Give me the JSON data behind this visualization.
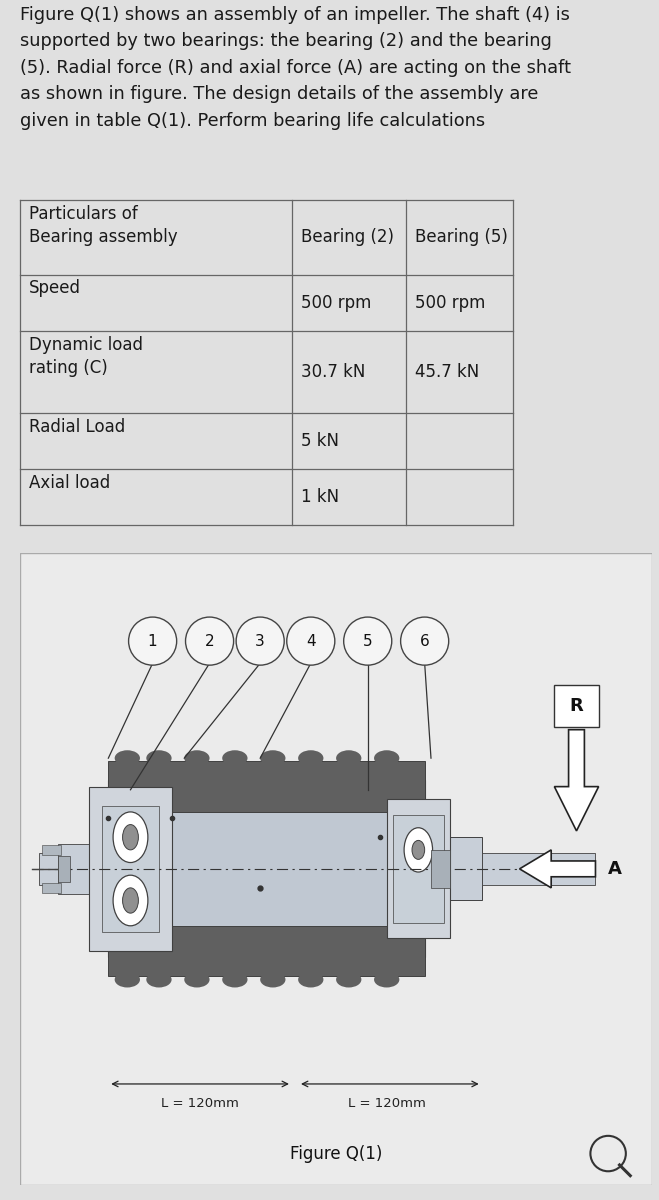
{
  "question_text": "Figure Q(1) shows an assembly of an impeller. The shaft (4) is\nsupported by two bearings: the bearing (2) and the bearing\n(5). Radial force (R) and axial force (A) are acting on the shaft\nas shown in figure. The design details of the assembly are\ngiven in table Q(1). Perform bearing life calculations",
  "table": {
    "col0_header": "Particulars of\nBearing assembly",
    "col1_header": "Bearing (2)",
    "col2_header": "Bearing (5)",
    "rows": [
      {
        "label": "Speed",
        "col1": "500 rpm",
        "col2": "500 rpm"
      },
      {
        "label": "Dynamic load\nrating (C)",
        "col1": "30.7 kN",
        "col2": "45.7 kN"
      },
      {
        "label": "Radial Load",
        "col1": "5 kN",
        "col2": ""
      },
      {
        "label": "Axial load",
        "col1": "1 kN",
        "col2": ""
      }
    ]
  },
  "bg_color": "#e0e0e0",
  "figure_label": "Figure Q(1)",
  "component_labels": [
    "1",
    "2",
    "3",
    "4",
    "5",
    "6"
  ],
  "dimension_labels": [
    "L = 120mm",
    "L = 120mm"
  ],
  "force_labels": [
    "R",
    "A"
  ]
}
